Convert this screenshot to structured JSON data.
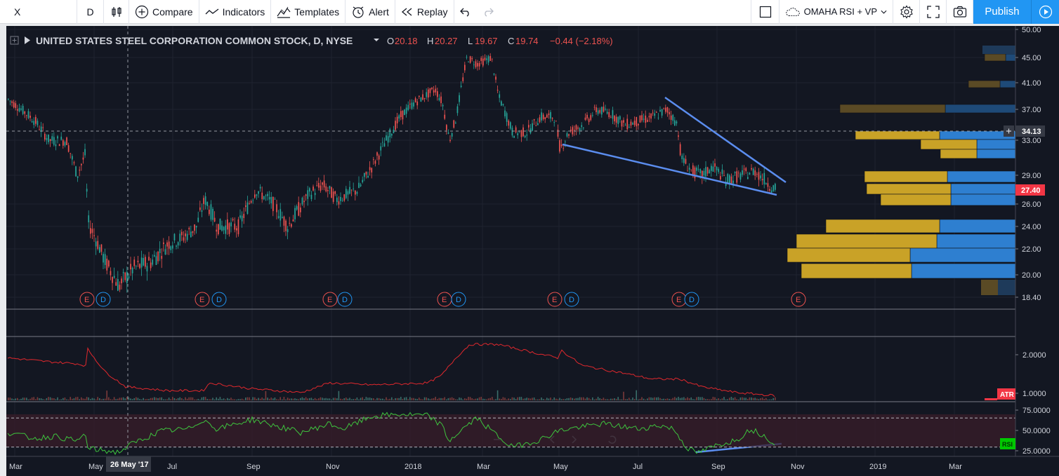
{
  "toolbar": {
    "symbol": "X",
    "interval": "D",
    "compare_label": "Compare",
    "indicators_label": "Indicators",
    "templates_label": "Templates",
    "alert_label": "Alert",
    "replay_label": "Replay",
    "layout_name": "OMAHA RSI + VP",
    "publish_label": "Publish"
  },
  "legend": {
    "title": "UNITED STATES STEEL CORPORATION COMMON STOCK, D, NYSE",
    "o_label": "O",
    "o_value": "20.18",
    "h_label": "H",
    "h_value": "20.27",
    "l_label": "L",
    "l_value": "19.67",
    "c_label": "C",
    "c_value": "19.74",
    "change": "−0.44 (−2.18%)"
  },
  "price_axis": {
    "ticks": [
      "50.00",
      "45.00",
      "41.00",
      "37.00",
      "33.00",
      "29.00",
      "26.00",
      "24.00",
      "22.00",
      "20.00",
      "18.40"
    ],
    "crosshair_label": "34.13",
    "last_price_label": "27.40",
    "last_price_color": "#f23645"
  },
  "atr_axis": {
    "ticks": [
      "2.0000",
      "1.0000"
    ],
    "badge": "ATR",
    "badge_color": "#f23645"
  },
  "rsi_axis": {
    "ticks": [
      "75.0000",
      "50.0000",
      "25.0000"
    ],
    "badge": "RSI",
    "badge_color": "#00c800"
  },
  "time_axis": {
    "labels": [
      "Mar",
      "May",
      "Jul",
      "Sep",
      "Nov",
      "2018",
      "Mar",
      "May",
      "Jul",
      "Sep",
      "Nov",
      "2019",
      "Mar"
    ],
    "crosshair_label": "26 May '17"
  },
  "events": {
    "earnings_label": "E",
    "dividend_label": "D",
    "markers": [
      {
        "type": "E"
      },
      {
        "type": "D"
      },
      {
        "type": "E"
      },
      {
        "type": "D"
      },
      {
        "type": "E"
      },
      {
        "type": "D"
      },
      {
        "type": "E"
      },
      {
        "type": "D"
      },
      {
        "type": "E"
      },
      {
        "type": "D"
      },
      {
        "type": "E"
      },
      {
        "type": "D"
      },
      {
        "type": "E"
      }
    ]
  },
  "colors": {
    "up": "#26a69a",
    "down": "#ef5350",
    "trendline": "#5b8def",
    "vp_up": "#2e7fd0",
    "vp_down": "#c9a227",
    "atr_line": "#e0282d",
    "rsi_line": "#3ec43e"
  },
  "chart_data": {
    "type": "candlestick",
    "symbol": "X",
    "exchange": "NYSE",
    "interval": "D",
    "price_range": [
      18.4,
      50.0
    ],
    "price_series": [
      {
        "month": "Mar 2017",
        "close": 38.5
      },
      {
        "month": "Apr 2017",
        "close": 30.5
      },
      {
        "month": "May 2017",
        "close": 20.0
      },
      {
        "month": "Jul 2017",
        "close": 22.5
      },
      {
        "month": "Sep 2017",
        "close": 26.0
      },
      {
        "month": "Nov 2017",
        "close": 27.0
      },
      {
        "month": "Jan 2018",
        "close": 38.0
      },
      {
        "month": "Feb 2018",
        "close": 45.0
      },
      {
        "month": "Mar 2018",
        "close": 35.0
      },
      {
        "month": "May 2018",
        "close": 33.0
      },
      {
        "month": "Jul 2018",
        "close": 37.0
      },
      {
        "month": "Sep 2018",
        "close": 29.0
      },
      {
        "month": "Oct 2018",
        "close": 27.4
      }
    ],
    "volume_profile": [
      {
        "price": 45.0,
        "up": 2,
        "down": 1
      },
      {
        "price": 41.0,
        "up": 3,
        "down": 2
      },
      {
        "price": 37.0,
        "up": 10,
        "down": 12
      },
      {
        "price": 34.13,
        "up": 10,
        "down": 9
      },
      {
        "price": 33.0,
        "up": 8,
        "down": 4
      },
      {
        "price": 29.0,
        "up": 8,
        "down": 7
      },
      {
        "price": 27.4,
        "up": 8,
        "down": 8
      },
      {
        "price": 26.0,
        "up": 8,
        "down": 7
      },
      {
        "price": 24.0,
        "up": 10,
        "down": 11
      },
      {
        "price": 22.0,
        "up": 12,
        "down": 14
      },
      {
        "price": 20.0,
        "up": 12,
        "down": 11
      }
    ],
    "atr": {
      "range": [
        1.0,
        2.0
      ],
      "values": [
        1.7,
        2.1,
        1.1,
        1.0,
        1.05,
        1.2,
        1.25,
        2.2,
        1.9,
        1.8,
        1.3,
        1.1,
        0.95
      ]
    },
    "rsi": {
      "range": [
        25,
        75
      ],
      "values": [
        48,
        22,
        40,
        68,
        52,
        60,
        75,
        64,
        38,
        55,
        58,
        28,
        48
      ]
    }
  }
}
